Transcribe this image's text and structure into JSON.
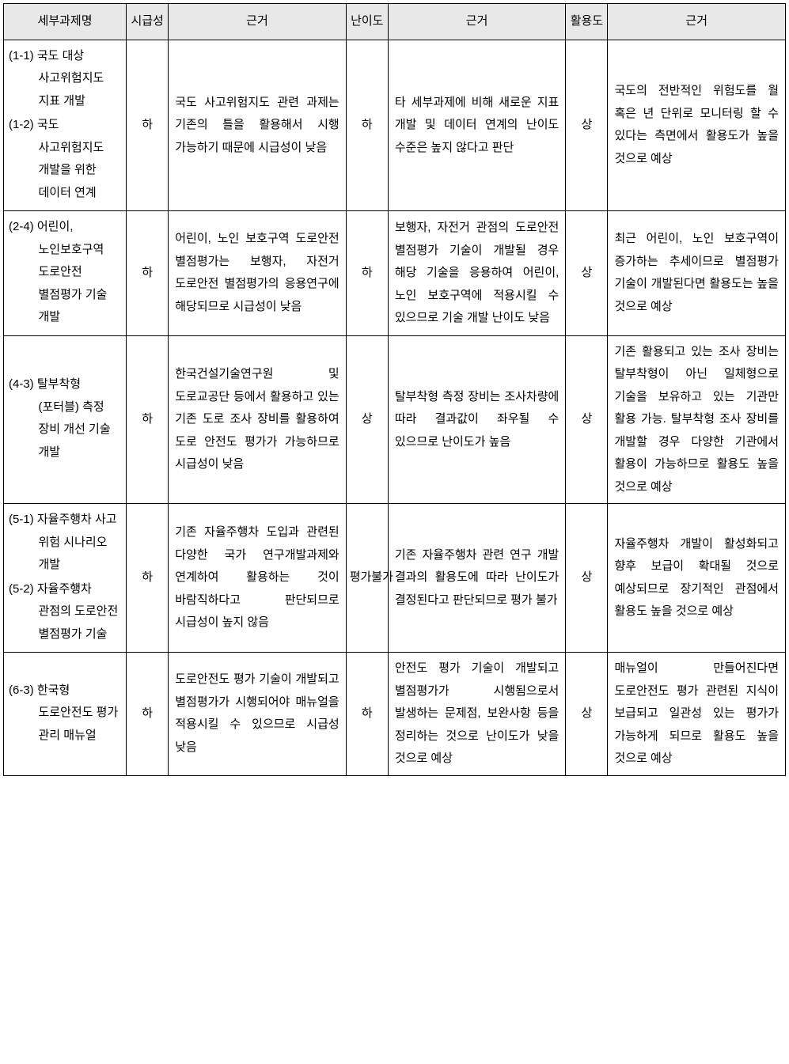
{
  "headers": {
    "task_name": "세부과제명",
    "urgency": "시급성",
    "reason1": "근거",
    "difficulty": "난이도",
    "reason2": "근거",
    "utility": "활용도",
    "reason3": "근거"
  },
  "rows": [
    {
      "task_items": [
        {
          "id": "(1-1)",
          "text": "국도 대상 사고위험지도 지표 개발"
        },
        {
          "id": "(1-2)",
          "text": "국도 사고위험지도 개발을 위한 데이터 연계"
        }
      ],
      "urgency": "하",
      "reason1": "국도 사고위험지도 관련 과제는 기존의 틀을 활용해서 시행 가능하기 때문에 시급성이 낮음",
      "difficulty": "하",
      "reason2": "타 세부과제에 비해 새로운 지표 개발 및 데이터 연계의 난이도 수준은 높지 않다고 판단",
      "utility": "상",
      "reason3": "국도의 전반적인 위험도를 월 혹은 년 단위로 모니터링 할 수 있다는 측면에서 활용도가 높을 것으로 예상"
    },
    {
      "task_items": [
        {
          "id": "(2-4)",
          "text": "어린이, 노인보호구역 도로안전 별점평가 기술 개발"
        }
      ],
      "urgency": "하",
      "reason1": "어린이, 노인 보호구역 도로안전 별점평가는 보행자, 자전거 도로안전 별점평가의 응용연구에 해당되므로 시급성이 낮음",
      "difficulty": "하",
      "reason2": "보행자, 자전거 관점의 도로안전 별점평가 기술이 개발될 경우 해당 기술을 응용하여 어린이, 노인 보호구역에 적용시킬 수 있으므로 기술 개발 난이도 낮음",
      "utility": "상",
      "reason3": "최근 어린이, 노인 보호구역이 증가하는 추세이므로 별점평가 기술이 개발된다면 활용도는 높을 것으로 예상"
    },
    {
      "task_items": [
        {
          "id": "(4-3)",
          "text": "탈부착형(포터블) 측정 장비 개선 기술 개발"
        }
      ],
      "urgency": "하",
      "reason1": "한국건설기술연구원 및 도로교공단 등에서 활용하고 있는 기존 도로 조사 장비를 활용하여 도로 안전도 평가가 가능하므로 시급성이 낮음",
      "difficulty": "상",
      "reason2": "탈부착형 측정 장비는 조사차량에 따라 결과값이 좌우될 수 있으므로 난이도가 높음",
      "utility": "상",
      "reason3": "기존 활용되고 있는 조사 장비는 탈부착형이 아닌 일체형으로 기술을 보유하고 있는 기관만 활용 가능. 탈부착형 조사 장비를 개발할 경우 다양한 기관에서 활용이 가능하므로 활용도 높을 것으로 예상"
    },
    {
      "task_items": [
        {
          "id": "(5-1)",
          "text": "자율주행차 사고 위험 시나리오 개발"
        },
        {
          "id": "(5-2)",
          "text": "자율주행차 관점의 도로안전 별점평가 기술"
        }
      ],
      "urgency": "하",
      "reason1": "기존 자율주행차 도입과 관련된 다양한 국가 연구개발과제와 연계하여 활용하는 것이 바람직하다고 판단되므로 시급성이 높지 않음",
      "difficulty": "평가불가",
      "reason2": "기존 자율주행차 관련 연구 개발 결과의 활용도에 따라 난이도가 결정된다고 판단되므로 평가 불가",
      "utility": "상",
      "reason3": "자율주행차 개발이 활성화되고 향후 보급이 확대될 것으로 예상되므로 장기적인 관점에서 활용도 높을 것으로 예상"
    },
    {
      "task_items": [
        {
          "id": "(6-3)",
          "text": "한국형 도로안전도 평가 관리 매뉴얼"
        }
      ],
      "urgency": "하",
      "reason1": "도로안전도 평가 기술이 개발되고 별점평가가 시행되어야 매뉴얼을 적용시킬 수 있으므로 시급성 낮음",
      "difficulty": "하",
      "reason2": "안전도 평가 기술이 개발되고 별점평가가 시행됨으로서 발생하는 문제점, 보완사항 등을 정리하는 것으로 난이도가 낮을 것으로 예상",
      "utility": "상",
      "reason3": "매뉴얼이 만들어진다면 도로안전도 평가 관련된 지식이 보급되고 일관성 있는 평가가 가능하게 되므로 활용도 높을 것으로 예상"
    }
  ]
}
